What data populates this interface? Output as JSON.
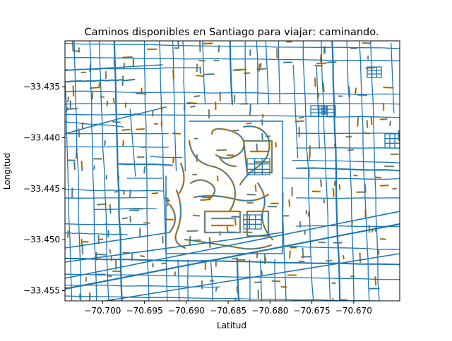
{
  "chart_data": {
    "type": "map",
    "title": "Caminos disponibles en Santiago para viajar: caminando.",
    "xlabel": "Latitud",
    "ylabel": "Longitud",
    "xlim": [
      -70.7045,
      -70.6645
    ],
    "ylim": [
      -33.456,
      -33.4305
    ],
    "x_ticks": [
      {
        "value": -70.7,
        "label": "−70.700"
      },
      {
        "value": -70.695,
        "label": "−70.695"
      },
      {
        "value": -70.69,
        "label": "−70.690"
      },
      {
        "value": -70.685,
        "label": "−70.685"
      },
      {
        "value": -70.68,
        "label": "−70.680"
      },
      {
        "value": -70.675,
        "label": "−70.675"
      },
      {
        "value": -70.67,
        "label": "−70.670"
      }
    ],
    "y_ticks": [
      {
        "value": -33.435,
        "label": "−33.435"
      },
      {
        "value": -33.44,
        "label": "−33.440"
      },
      {
        "value": -33.445,
        "label": "−33.445"
      },
      {
        "value": -33.45,
        "label": "−33.450"
      },
      {
        "value": -33.455,
        "label": "−33.455"
      }
    ],
    "colors": {
      "streets": "#1f77b4",
      "paths": "#ff9f1c"
    },
    "grid": false
  }
}
